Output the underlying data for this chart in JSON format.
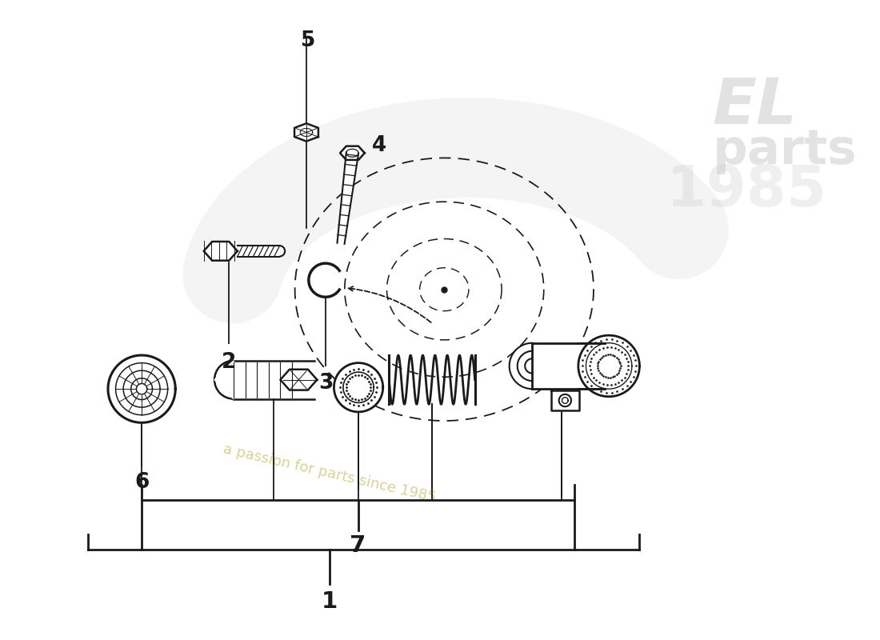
{
  "bg_color": "#ffffff",
  "lc": "#1a1a1a",
  "figsize": [
    11.0,
    8.0
  ],
  "dpi": 100,
  "watermark2": "a passion for parts since 1985",
  "wm_color": "#d4d090"
}
